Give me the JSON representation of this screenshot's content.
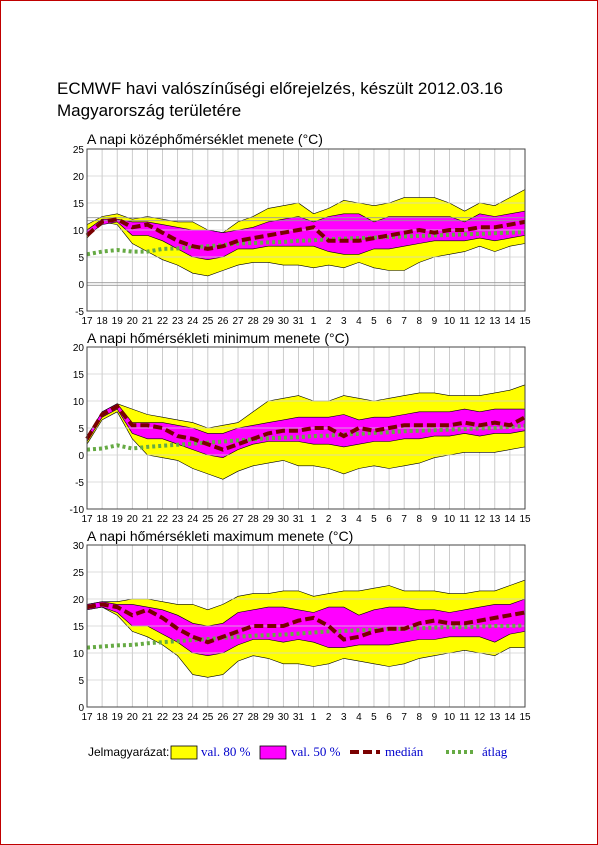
{
  "title_line1": "ECMWF havi valószínűségi előrejelzés, készült 2012.03.16",
  "title_line2": "Magyarország területére",
  "x_labels": [
    "17",
    "18",
    "19",
    "20",
    "21",
    "22",
    "23",
    "24",
    "25",
    "26",
    "27",
    "28",
    "29",
    "30",
    "31",
    "1",
    "2",
    "3",
    "4",
    "5",
    "6",
    "7",
    "8",
    "9",
    "10",
    "11",
    "12",
    "13",
    "14",
    "15"
  ],
  "colors": {
    "band80": "#ffff00",
    "band50": "#ff00ff",
    "median": "#7a0000",
    "average": "#66aa44"
  },
  "legend": {
    "prefix": "Jelmagyarázat:",
    "band80": "val. 80 %",
    "band50": "val. 50 %",
    "median": "medián",
    "average": "átlag"
  },
  "chart_data": [
    {
      "type": "area",
      "title": "A napi középhőmérséklet menete (°C)",
      "ylim": [
        -5,
        25
      ],
      "yticks": [
        -5,
        0,
        5,
        10,
        15,
        20,
        25
      ],
      "hlines": [
        0,
        12
      ],
      "series": [
        {
          "name": "val. 80 %",
          "lower": [
            8.5,
            11.5,
            11,
            7.5,
            6,
            4.5,
            3.5,
            2,
            1.5,
            2.5,
            3.5,
            4,
            4,
            3.5,
            3.5,
            3,
            3.5,
            3,
            4,
            3,
            2.5,
            2.5,
            4,
            5,
            5.5,
            6,
            7,
            6,
            7,
            7.5
          ],
          "upper": [
            11,
            12.5,
            13,
            12,
            12.5,
            12,
            11.5,
            11.5,
            10,
            9.5,
            11.5,
            12.5,
            14,
            14.5,
            15,
            13,
            14,
            15.5,
            15,
            14.5,
            15,
            16,
            16,
            16,
            15,
            13.5,
            15,
            14.5,
            16,
            17.5
          ]
        },
        {
          "name": "val. 50 %",
          "lower": [
            9,
            11,
            11.5,
            9,
            9,
            8,
            6.5,
            5,
            4.5,
            5,
            6.5,
            6.5,
            7,
            7,
            7,
            7,
            6,
            5.5,
            5.5,
            6.5,
            6.5,
            7,
            7.5,
            8,
            8,
            8,
            8.5,
            8,
            8.5,
            9
          ],
          "upper": [
            10,
            12,
            12,
            11.5,
            11.5,
            11,
            10.5,
            10,
            10,
            9.5,
            10,
            10.5,
            11.5,
            12,
            12.5,
            11.5,
            12.5,
            13,
            13,
            11.5,
            12.5,
            12.5,
            12.5,
            12.5,
            12.5,
            11.5,
            13,
            12.5,
            13,
            13.5
          ]
        },
        {
          "name": "medián",
          "values": [
            9,
            11.5,
            12,
            10.5,
            11,
            9.5,
            8,
            7,
            6.5,
            7,
            8,
            8.5,
            9,
            9.5,
            10,
            10.5,
            8,
            8,
            8,
            8.5,
            9,
            9.5,
            10,
            9.5,
            10,
            10,
            10.5,
            10.5,
            11,
            11.5
          ]
        },
        {
          "name": "átlag",
          "values": [
            5.5,
            6,
            6.3,
            6,
            6,
            6.5,
            6.6,
            6.8,
            7,
            7.2,
            7.5,
            7.6,
            7.7,
            7.8,
            8,
            8.1,
            8.3,
            8.4,
            8.5,
            8.6,
            8.7,
            8.8,
            8.9,
            9,
            9.1,
            9.2,
            9.3,
            9.4,
            9.5,
            9.6
          ]
        }
      ]
    },
    {
      "type": "area",
      "title": "A napi hőmérsékleti minimum menete (°C)",
      "ylim": [
        -10,
        20
      ],
      "yticks": [
        -10,
        -5,
        0,
        5,
        10,
        15,
        20
      ],
      "hlines": [],
      "series": [
        {
          "name": "val. 80 %",
          "lower": [
            2,
            6.5,
            8,
            3,
            0,
            -0.5,
            -1,
            -2.5,
            -3.5,
            -4.5,
            -3,
            -2,
            -1.5,
            -1,
            -2,
            -2,
            -2.5,
            -3.5,
            -2.5,
            -2,
            -2.5,
            -2,
            -1.5,
            -0.5,
            0,
            0.5,
            0.5,
            0.5,
            1,
            1.5
          ],
          "upper": [
            3.5,
            8,
            9.5,
            8.5,
            7.5,
            7,
            6.5,
            6,
            5,
            5.5,
            6,
            8,
            10,
            10.5,
            11,
            10,
            10,
            11,
            10.5,
            10,
            10.5,
            11,
            11.5,
            11.5,
            11,
            11,
            11,
            11.5,
            12,
            13
          ]
        },
        {
          "name": "val. 50 %",
          "lower": [
            2.5,
            7,
            8.5,
            4,
            3,
            3,
            2,
            1,
            0,
            -0.5,
            1,
            2,
            2.5,
            2.5,
            2.5,
            2,
            2,
            1.5,
            2,
            2.5,
            2.5,
            3,
            3,
            3.5,
            3.5,
            4,
            3.5,
            4,
            4,
            4.5
          ],
          "upper": [
            3.5,
            8,
            9.5,
            6,
            6,
            6,
            5.5,
            5,
            4,
            4,
            5,
            5.5,
            6,
            6.5,
            7,
            7,
            7,
            7.5,
            6.5,
            7,
            7,
            7.5,
            8,
            8,
            8,
            8.5,
            8,
            8.5,
            8.5,
            8.5
          ]
        },
        {
          "name": "medián",
          "values": [
            3,
            7.5,
            9,
            5.5,
            5.5,
            5,
            3.5,
            3,
            2,
            1,
            2,
            3,
            4,
            4.5,
            4.5,
            5,
            5,
            3.5,
            5,
            4.5,
            5,
            5.5,
            5.5,
            5.5,
            5.5,
            6,
            5.5,
            6,
            5.5,
            7
          ]
        },
        {
          "name": "átlag",
          "values": [
            1,
            1.2,
            1.8,
            1.2,
            1.5,
            1.7,
            1.9,
            2.1,
            2.3,
            2.5,
            2.7,
            2.9,
            3.1,
            3.2,
            3.3,
            3.5,
            3.6,
            3.8,
            3.9,
            4.1,
            4.2,
            4.4,
            4.5,
            4.6,
            4.7,
            4.8,
            4.9,
            5,
            5.2,
            5.4
          ]
        }
      ]
    },
    {
      "type": "area",
      "title": "A napi hőmérsékleti maximum menete (°C)",
      "ylim": [
        0,
        30
      ],
      "yticks": [
        0,
        5,
        10,
        15,
        20,
        25,
        30
      ],
      "hlines": [],
      "series": [
        {
          "name": "val. 80 %",
          "lower": [
            18,
            18.5,
            17,
            14,
            13,
            11.5,
            9.5,
            6,
            5.5,
            6,
            8.5,
            9.5,
            9,
            8,
            8,
            7.5,
            8,
            9,
            8.5,
            8,
            7.5,
            8,
            9,
            9.5,
            10,
            10.5,
            10,
            9.5,
            11,
            11
          ]
        },
        {
          "name": "val. 50 %",
          "lower": [
            18,
            18.5,
            17.5,
            15,
            15,
            13.5,
            12,
            10,
            9.5,
            10,
            11.5,
            12.5,
            12.5,
            12,
            12.5,
            12,
            11,
            11,
            11.5,
            11.5,
            11.5,
            12,
            12.5,
            12.5,
            13,
            13,
            13,
            12,
            13.5,
            14
          ],
          "upper": [
            19,
            19.5,
            19,
            19,
            18.5,
            18,
            17,
            15.5,
            15,
            15.5,
            17.5,
            18,
            18.5,
            18.5,
            18,
            17.5,
            18.5,
            18.5,
            17,
            18,
            18.5,
            18.5,
            18,
            18,
            17.5,
            18,
            18.5,
            19,
            19,
            20
          ]
        },
        {
          "name": "medián",
          "values": [
            18.5,
            19,
            18.5,
            17,
            18,
            16.5,
            14.5,
            13,
            12,
            13,
            14,
            15,
            15,
            15,
            16,
            16.5,
            15,
            12.5,
            13,
            14,
            14.5,
            14.5,
            15.5,
            16,
            15.5,
            15.5,
            16,
            16.5,
            17,
            17.5
          ]
        },
        {
          "name": "átlag",
          "values": [
            11,
            11.2,
            11.4,
            11.5,
            11.8,
            12,
            12.2,
            12.4,
            12.6,
            12.8,
            13,
            13.2,
            13.3,
            13.4,
            13.6,
            13.8,
            14,
            14.1,
            14.2,
            14.3,
            14.4,
            14.5,
            14.6,
            14.7,
            14.8,
            14.8,
            14.9,
            15,
            15,
            15.1
          ]
        }
      ]
    }
  ]
}
